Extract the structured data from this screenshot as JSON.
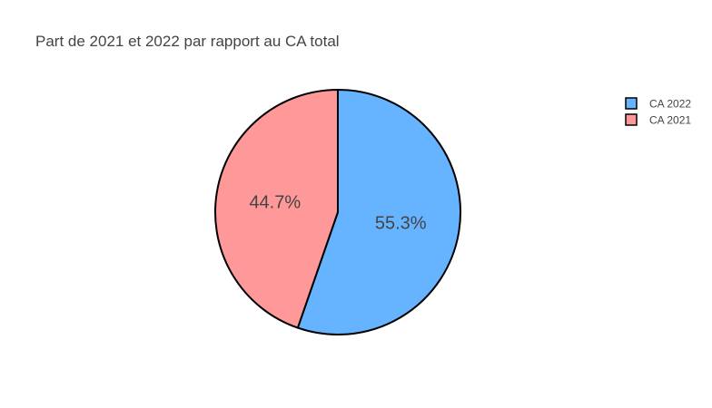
{
  "chart_data": {
    "type": "pie",
    "title": "Part de 2021 et 2022 par rapport au CA total",
    "categories": [
      "CA 2022",
      "CA 2021"
    ],
    "values": [
      55.3,
      44.7
    ],
    "labels": [
      "55.3%",
      "44.7%"
    ],
    "colors": [
      "#66b3ff",
      "#ff9999"
    ],
    "slice_outline_color": "#000000",
    "direction": "clockwise",
    "start": "12 o'clock",
    "legend": {
      "position": "top-right",
      "entries": [
        "CA 2022",
        "CA 2021"
      ]
    }
  }
}
